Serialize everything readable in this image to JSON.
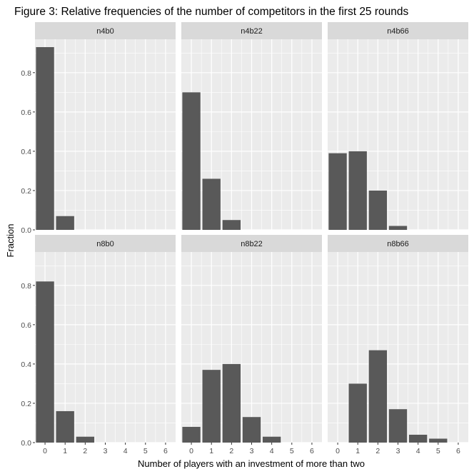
{
  "chart_data": {
    "type": "bar",
    "title": "Figure 3: Relative frequencies of the number of competitors in the first 25 rounds",
    "xlabel": "Number of players with an investment of more than two",
    "ylabel": "Fraction",
    "x_ticks": [
      "0",
      "1",
      "2",
      "3",
      "4",
      "5",
      "6"
    ],
    "y_ticks": [
      "0.0",
      "0.2",
      "0.4",
      "0.6",
      "0.8"
    ],
    "xlim": [
      -0.5,
      6.5
    ],
    "ylim": [
      0,
      0.97
    ],
    "grid": true,
    "legend": "none",
    "bar_color": "#595959",
    "panel_background": "#ebebeb",
    "strip_background": "#d9d9d9",
    "panels": [
      {
        "name": "n4b0",
        "x": [
          0,
          1
        ],
        "values": [
          0.93,
          0.07
        ]
      },
      {
        "name": "n4b22",
        "x": [
          0,
          1,
          2
        ],
        "values": [
          0.7,
          0.26,
          0.05
        ]
      },
      {
        "name": "n4b66",
        "x": [
          0,
          1,
          2,
          3
        ],
        "values": [
          0.39,
          0.4,
          0.2,
          0.02
        ]
      },
      {
        "name": "n8b0",
        "x": [
          0,
          1,
          2
        ],
        "values": [
          0.82,
          0.16,
          0.03
        ]
      },
      {
        "name": "n8b22",
        "x": [
          0,
          1,
          2,
          3,
          4
        ],
        "values": [
          0.08,
          0.37,
          0.4,
          0.13,
          0.03
        ]
      },
      {
        "name": "n8b66",
        "x": [
          1,
          2,
          3,
          4,
          5
        ],
        "values": [
          0.3,
          0.47,
          0.17,
          0.04,
          0.02
        ]
      }
    ]
  }
}
